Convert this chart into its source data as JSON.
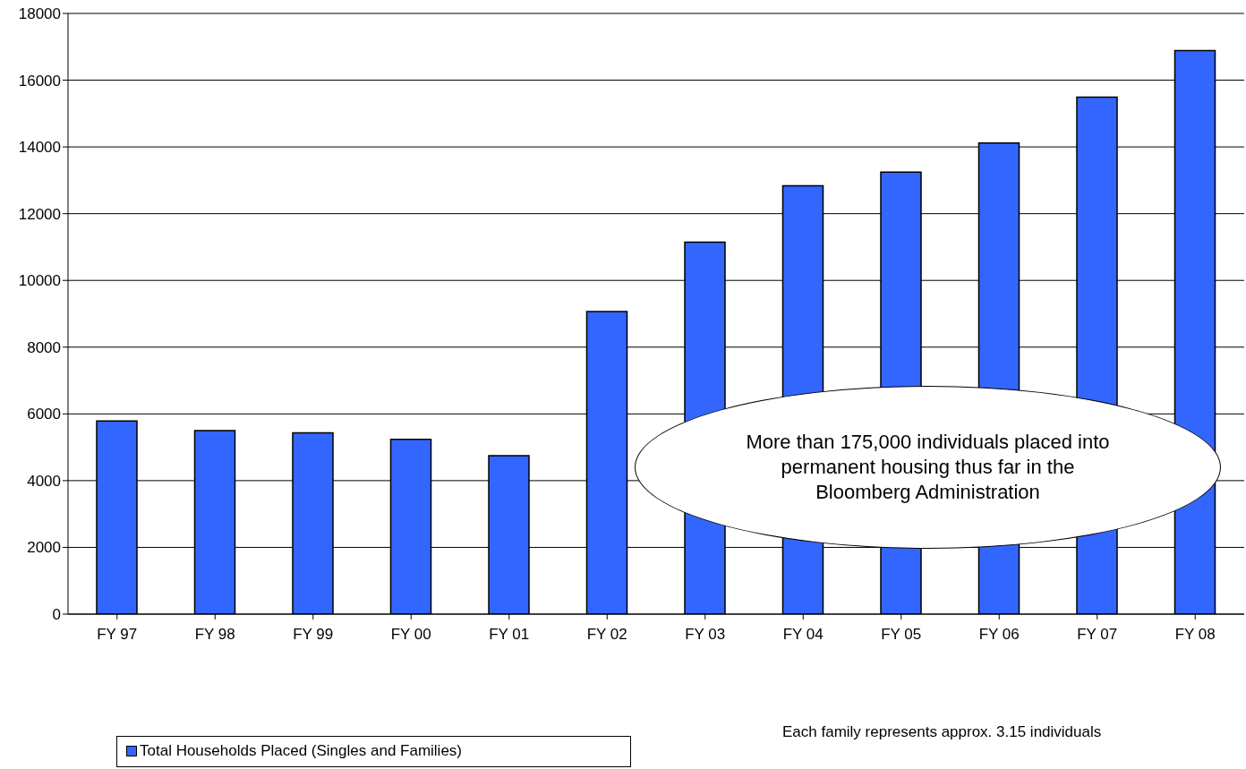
{
  "chart_data": {
    "type": "bar",
    "categories": [
      "FY 97",
      "FY 98",
      "FY 99",
      "FY 00",
      "FY 01",
      "FY 02",
      "FY 03",
      "FY 04",
      "FY 05",
      "FY 06",
      "FY 07",
      "FY 08"
    ],
    "series": [
      {
        "name": "Total Households Placed (Singles and Families)",
        "color": "#3366ff",
        "values": [
          5790,
          5500,
          5430,
          5235,
          4750,
          9070,
          11145,
          12835,
          13245,
          14115,
          15490,
          16890
        ]
      }
    ],
    "ylim": [
      0,
      18000
    ],
    "yticks": [
      0,
      2000,
      4000,
      6000,
      8000,
      10000,
      12000,
      14000,
      16000,
      18000
    ],
    "grid": "y",
    "legend": "bottom left",
    "annotations": [
      "More than 175,000 individuals placed into permanent housing thus far in the Bloomberg Administration",
      "Each family represents approx. 3.15 individuals"
    ]
  }
}
